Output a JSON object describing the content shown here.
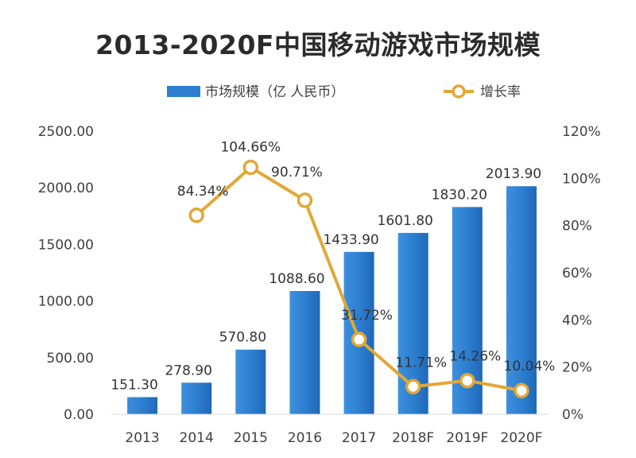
{
  "title": "2013-2020F中国移动游戏市场规模",
  "chart_data": {
    "type": "bar",
    "title": "2013-2020F中国移动游戏市场规模",
    "categories": [
      "2013",
      "2014",
      "2015",
      "2016",
      "2017",
      "2018F",
      "2019F",
      "2020F"
    ],
    "series": [
      {
        "name": "市场规模（亿 人民币）",
        "type": "bar",
        "axis": "left",
        "color": "#2e7fd1",
        "values": [
          151.3,
          278.9,
          570.8,
          1088.6,
          1433.9,
          1601.8,
          1830.2,
          2013.9
        ],
        "labels": [
          "151.30",
          "278.90",
          "570.80",
          "1088.60",
          "1433.90",
          "1601.80",
          "1830.20",
          "2013.90"
        ]
      },
      {
        "name": "增长率",
        "type": "line",
        "axis": "right",
        "color": "#e2a736",
        "values": [
          null,
          84.34,
          104.66,
          90.71,
          31.72,
          11.71,
          14.26,
          10.04
        ],
        "labels": [
          "",
          "84.34%",
          "104.66%",
          "90.71%",
          "31.72%",
          "11.71%",
          "14.26%",
          "10.04%"
        ]
      }
    ],
    "y_left": {
      "ylim": [
        0,
        2500
      ],
      "ticks": [
        0,
        500,
        1000,
        1500,
        2000,
        2500
      ],
      "tick_labels": [
        "0.00",
        "500.00",
        "1000.00",
        "1500.00",
        "2000.00",
        "2500.00"
      ]
    },
    "y_right": {
      "ylim": [
        0,
        120
      ],
      "ticks": [
        0,
        20,
        40,
        60,
        80,
        100,
        120
      ],
      "tick_labels": [
        "0%",
        "20%",
        "40%",
        "60%",
        "80%",
        "100%",
        "120%"
      ]
    },
    "grid": false,
    "legend": {
      "position": "top",
      "items": [
        "市场规模（亿 人民币）",
        "增长率"
      ]
    }
  }
}
